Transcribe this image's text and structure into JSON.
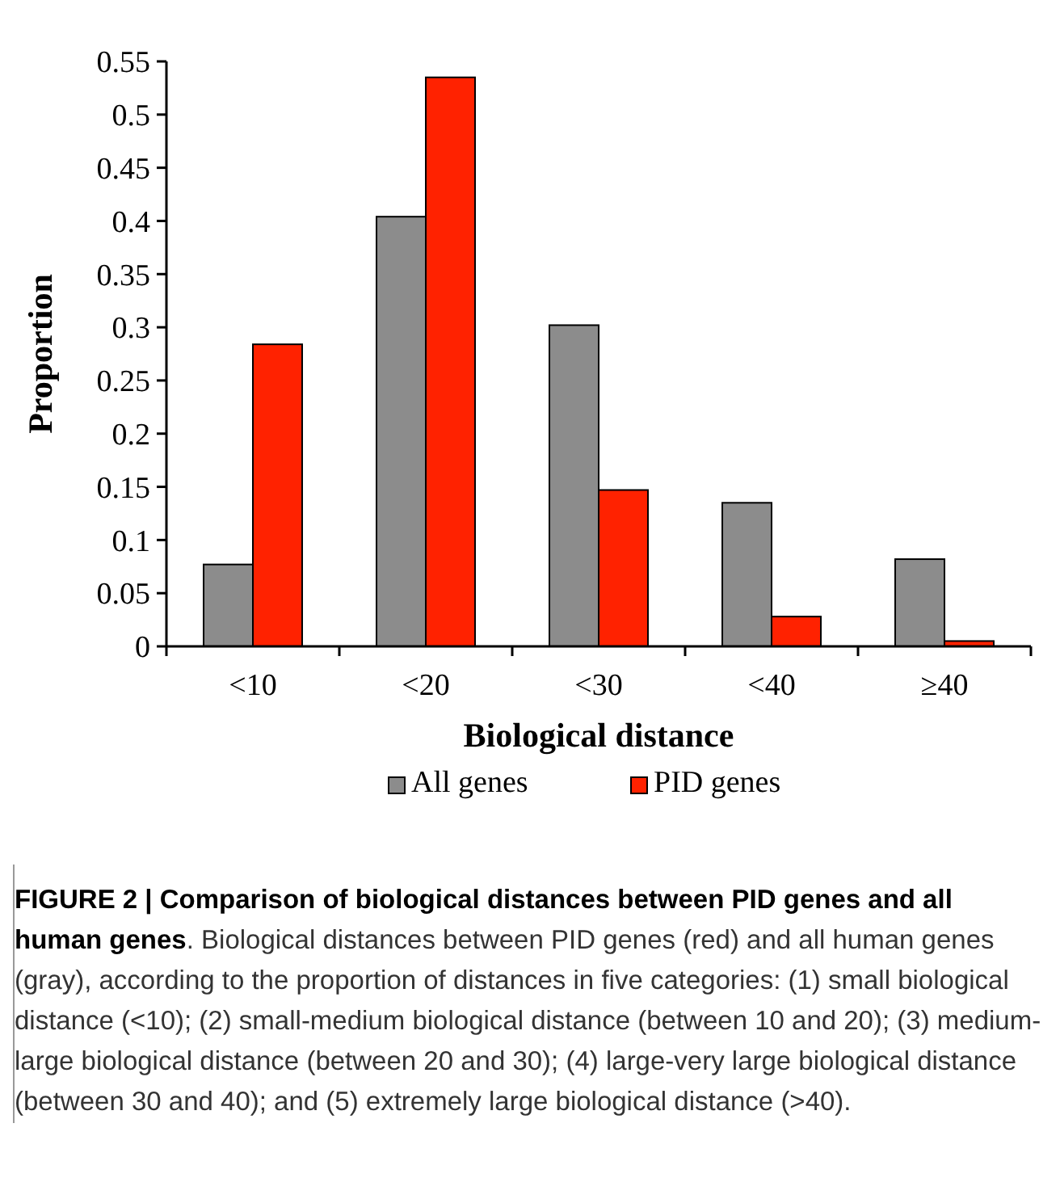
{
  "chart_data": {
    "type": "bar",
    "title": "FIGURE 2 | Comparison of biological distances between PID genes and all human genes",
    "xlabel": "Biological distance",
    "ylabel": "Proportion",
    "categories": [
      "<10",
      "<20",
      "<30",
      "<40",
      "≥40"
    ],
    "series": [
      {
        "name": "All genes",
        "color": "#8c8c8c",
        "values": [
          0.077,
          0.404,
          0.302,
          0.135,
          0.082
        ]
      },
      {
        "name": "PID genes",
        "color": "#ff2200",
        "values": [
          0.284,
          0.535,
          0.147,
          0.028,
          0.005
        ]
      }
    ],
    "ylim": [
      0,
      0.55
    ],
    "yticks": [
      0,
      0.05,
      0.1,
      0.15,
      0.2,
      0.25,
      0.3,
      0.35,
      0.4,
      0.45,
      0.5,
      0.55
    ],
    "grid": false,
    "legend": "bottom",
    "annotations": [
      ". Biological distances between PID genes (red) and all human genes (gray), according to the proportion of distances in five categories: (1) small biological distance (<10); (2) small-medium biological distance (between 10 and 20); (3) medium-large biological distance (between 20 and 30); (4) large-very large biological distance (between 30 and 40); and (5) extremely large biological distance (>40)."
    ]
  }
}
